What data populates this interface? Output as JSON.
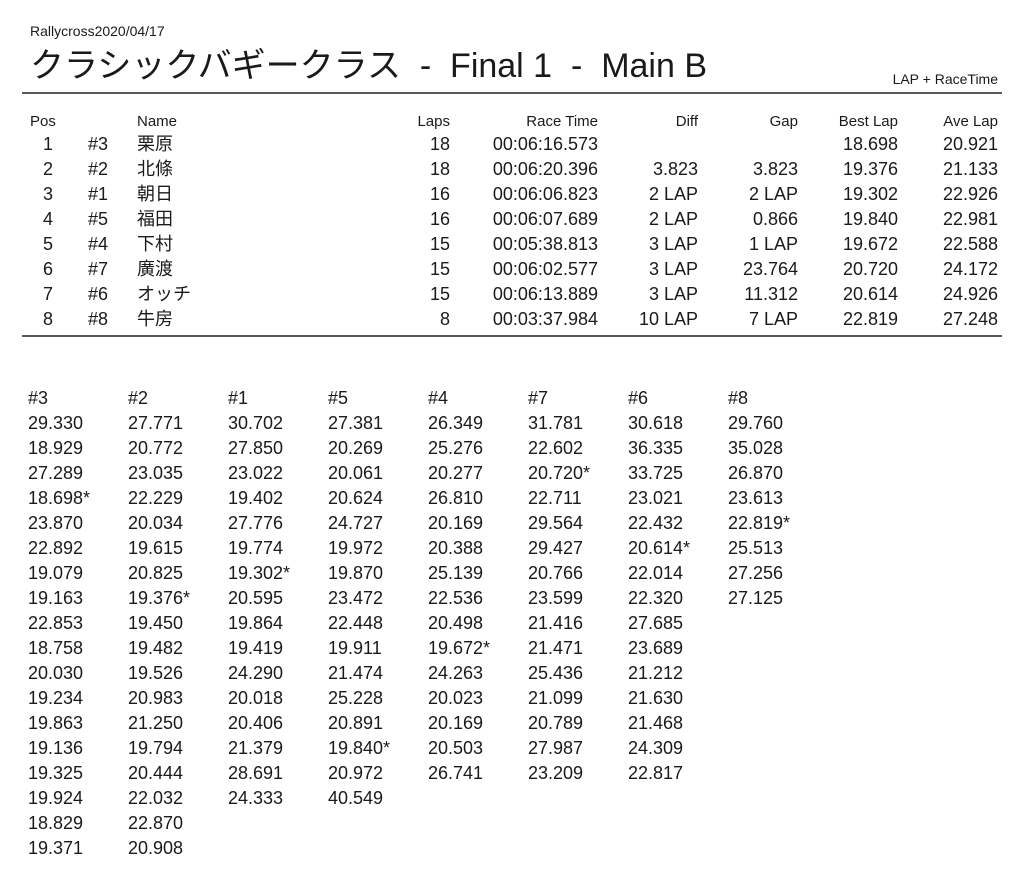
{
  "header": {
    "event": "Rallycross2020/04/17",
    "title": "クラシックバギークラス  -  Final 1  -  Main B",
    "mode": "LAP + RaceTime"
  },
  "results": {
    "columns": {
      "pos": "Pos",
      "name": "Name",
      "laps": "Laps",
      "race_time": "Race Time",
      "diff": "Diff",
      "gap": "Gap",
      "best_lap": "Best Lap",
      "ave_lap": "Ave Lap"
    },
    "rows": [
      {
        "pos": "1",
        "car": "#3",
        "name": "栗原",
        "laps": "18",
        "race_time": "00:06:16.573",
        "diff": null,
        "gap": null,
        "best_lap": "18.698",
        "ave_lap": "20.921"
      },
      {
        "pos": "2",
        "car": "#2",
        "name": "北條",
        "laps": "18",
        "race_time": "00:06:20.396",
        "diff": "3.823",
        "gap": "3.823",
        "best_lap": "19.376",
        "ave_lap": "21.133"
      },
      {
        "pos": "3",
        "car": "#1",
        "name": "朝日",
        "laps": "16",
        "race_time": "00:06:06.823",
        "diff": "2 LAP",
        "gap": "2 LAP",
        "best_lap": "19.302",
        "ave_lap": "22.926"
      },
      {
        "pos": "4",
        "car": "#5",
        "name": "福田",
        "laps": "16",
        "race_time": "00:06:07.689",
        "diff": "2 LAP",
        "gap": "0.866",
        "best_lap": "19.840",
        "ave_lap": "22.981"
      },
      {
        "pos": "5",
        "car": "#4",
        "name": "下村",
        "laps": "15",
        "race_time": "00:05:38.813",
        "diff": "3 LAP",
        "gap": "1 LAP",
        "best_lap": "19.672",
        "ave_lap": "22.588"
      },
      {
        "pos": "6",
        "car": "#7",
        "name": "廣渡",
        "laps": "15",
        "race_time": "00:06:02.577",
        "diff": "3 LAP",
        "gap": "23.764",
        "best_lap": "20.720",
        "ave_lap": "24.172"
      },
      {
        "pos": "7",
        "car": "#6",
        "name": "オッチ",
        "laps": "15",
        "race_time": "00:06:13.889",
        "diff": "3 LAP",
        "gap": "11.312",
        "best_lap": "20.614",
        "ave_lap": "24.926"
      },
      {
        "pos": "8",
        "car": "#8",
        "name": "牛房",
        "laps": "8",
        "race_time": "00:03:37.984",
        "diff": "10 LAP",
        "gap": "7 LAP",
        "best_lap": "22.819",
        "ave_lap": "27.248"
      }
    ]
  },
  "lap_times": [
    {
      "car": "#3",
      "times": [
        "29.330",
        "18.929",
        "27.289",
        "18.698*",
        "23.870",
        "22.892",
        "19.079",
        "19.163",
        "22.853",
        "18.758",
        "20.030",
        "19.234",
        "19.863",
        "19.136",
        "19.325",
        "19.924",
        "18.829",
        "19.371"
      ]
    },
    {
      "car": "#2",
      "times": [
        "27.771",
        "20.772",
        "23.035",
        "22.229",
        "20.034",
        "19.615",
        "20.825",
        "19.376*",
        "19.450",
        "19.482",
        "19.526",
        "20.983",
        "21.250",
        "19.794",
        "20.444",
        "22.032",
        "22.870",
        "20.908"
      ]
    },
    {
      "car": "#1",
      "times": [
        "30.702",
        "27.850",
        "23.022",
        "19.402",
        "27.776",
        "19.774",
        "19.302*",
        "20.595",
        "19.864",
        "19.419",
        "24.290",
        "20.018",
        "20.406",
        "21.379",
        "28.691",
        "24.333"
      ]
    },
    {
      "car": "#5",
      "times": [
        "27.381",
        "20.269",
        "20.061",
        "20.624",
        "24.727",
        "19.972",
        "19.870",
        "23.472",
        "22.448",
        "19.911",
        "21.474",
        "25.228",
        "20.891",
        "19.840*",
        "20.972",
        "40.549"
      ]
    },
    {
      "car": "#4",
      "times": [
        "26.349",
        "25.276",
        "20.277",
        "26.810",
        "20.169",
        "20.388",
        "25.139",
        "22.536",
        "20.498",
        "19.672*",
        "24.263",
        "20.023",
        "20.169",
        "20.503",
        "26.741"
      ]
    },
    {
      "car": "#7",
      "times": [
        "31.781",
        "22.602",
        "20.720*",
        "22.711",
        "29.564",
        "29.427",
        "20.766",
        "23.599",
        "21.416",
        "21.471",
        "25.436",
        "21.099",
        "20.789",
        "27.987",
        "23.209"
      ]
    },
    {
      "car": "#6",
      "times": [
        "30.618",
        "36.335",
        "33.725",
        "23.021",
        "22.432",
        "20.614*",
        "22.014",
        "22.320",
        "27.685",
        "23.689",
        "21.212",
        "21.630",
        "21.468",
        "24.309",
        "22.817"
      ]
    },
    {
      "car": "#8",
      "times": [
        "29.760",
        "35.028",
        "26.870",
        "23.613",
        "22.819*",
        "25.513",
        "27.256",
        "27.125"
      ]
    }
  ]
}
